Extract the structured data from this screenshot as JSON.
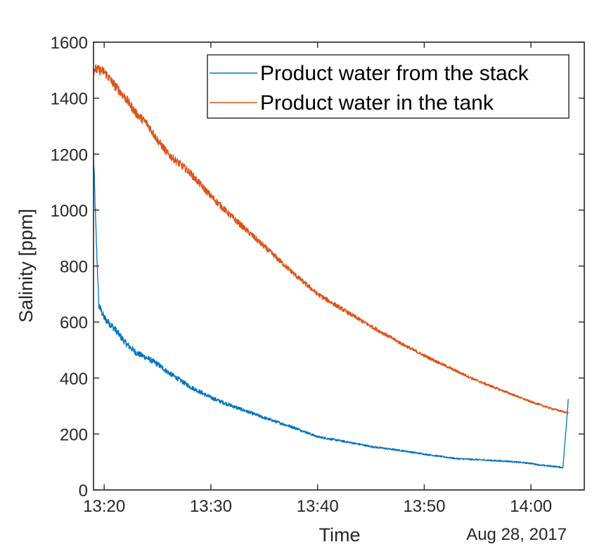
{
  "chart_data": {
    "type": "line",
    "title": "",
    "xlabel": "Time",
    "ylabel": "Salinity [ppm]",
    "date_label": "Aug 28, 2017",
    "xlim": [
      "13:19",
      "14:05"
    ],
    "ylim": [
      0,
      1600
    ],
    "x_ticks": [
      "13:20",
      "13:30",
      "13:40",
      "13:50",
      "14:00"
    ],
    "y_ticks": [
      0,
      200,
      400,
      600,
      800,
      1000,
      1200,
      1400,
      1600
    ],
    "grid": false,
    "legend_position": "top-right",
    "series": [
      {
        "name": "Product water from the stack",
        "color": "#0072BD",
        "x": [
          "13:19",
          "13:19:15",
          "13:19:30",
          "13:20",
          "13:21",
          "13:22",
          "13:23",
          "13:24",
          "13:25",
          "13:26",
          "13:28",
          "13:30",
          "13:32",
          "13:35",
          "13:38",
          "13:40",
          "13:43",
          "13:45",
          "13:48",
          "13:50",
          "13:53",
          "13:55",
          "13:58",
          "14:00",
          "14:01",
          "14:02",
          "14:03",
          "14:03:15",
          "14:03:30"
        ],
        "values": [
          1200,
          900,
          660,
          615,
          575,
          525,
          490,
          472,
          450,
          420,
          370,
          330,
          300,
          258,
          220,
          190,
          170,
          155,
          140,
          128,
          112,
          108,
          102,
          95,
          88,
          85,
          80,
          200,
          325
        ]
      },
      {
        "name": "Product water in the tank",
        "color": "#D95319",
        "x": [
          "13:19",
          "13:20",
          "13:21",
          "13:22",
          "13:23",
          "13:24",
          "13:25",
          "13:26",
          "13:28",
          "13:30",
          "13:32",
          "13:35",
          "13:38",
          "13:40",
          "13:43",
          "13:45",
          "13:48",
          "13:50",
          "13:53",
          "13:55",
          "13:58",
          "14:00",
          "14:02",
          "14:03:30"
        ],
        "values": [
          1505,
          1495,
          1445,
          1400,
          1345,
          1310,
          1250,
          1200,
          1135,
          1050,
          975,
          870,
          765,
          700,
          630,
          585,
          520,
          480,
          425,
          390,
          345,
          315,
          290,
          275
        ]
      }
    ]
  }
}
